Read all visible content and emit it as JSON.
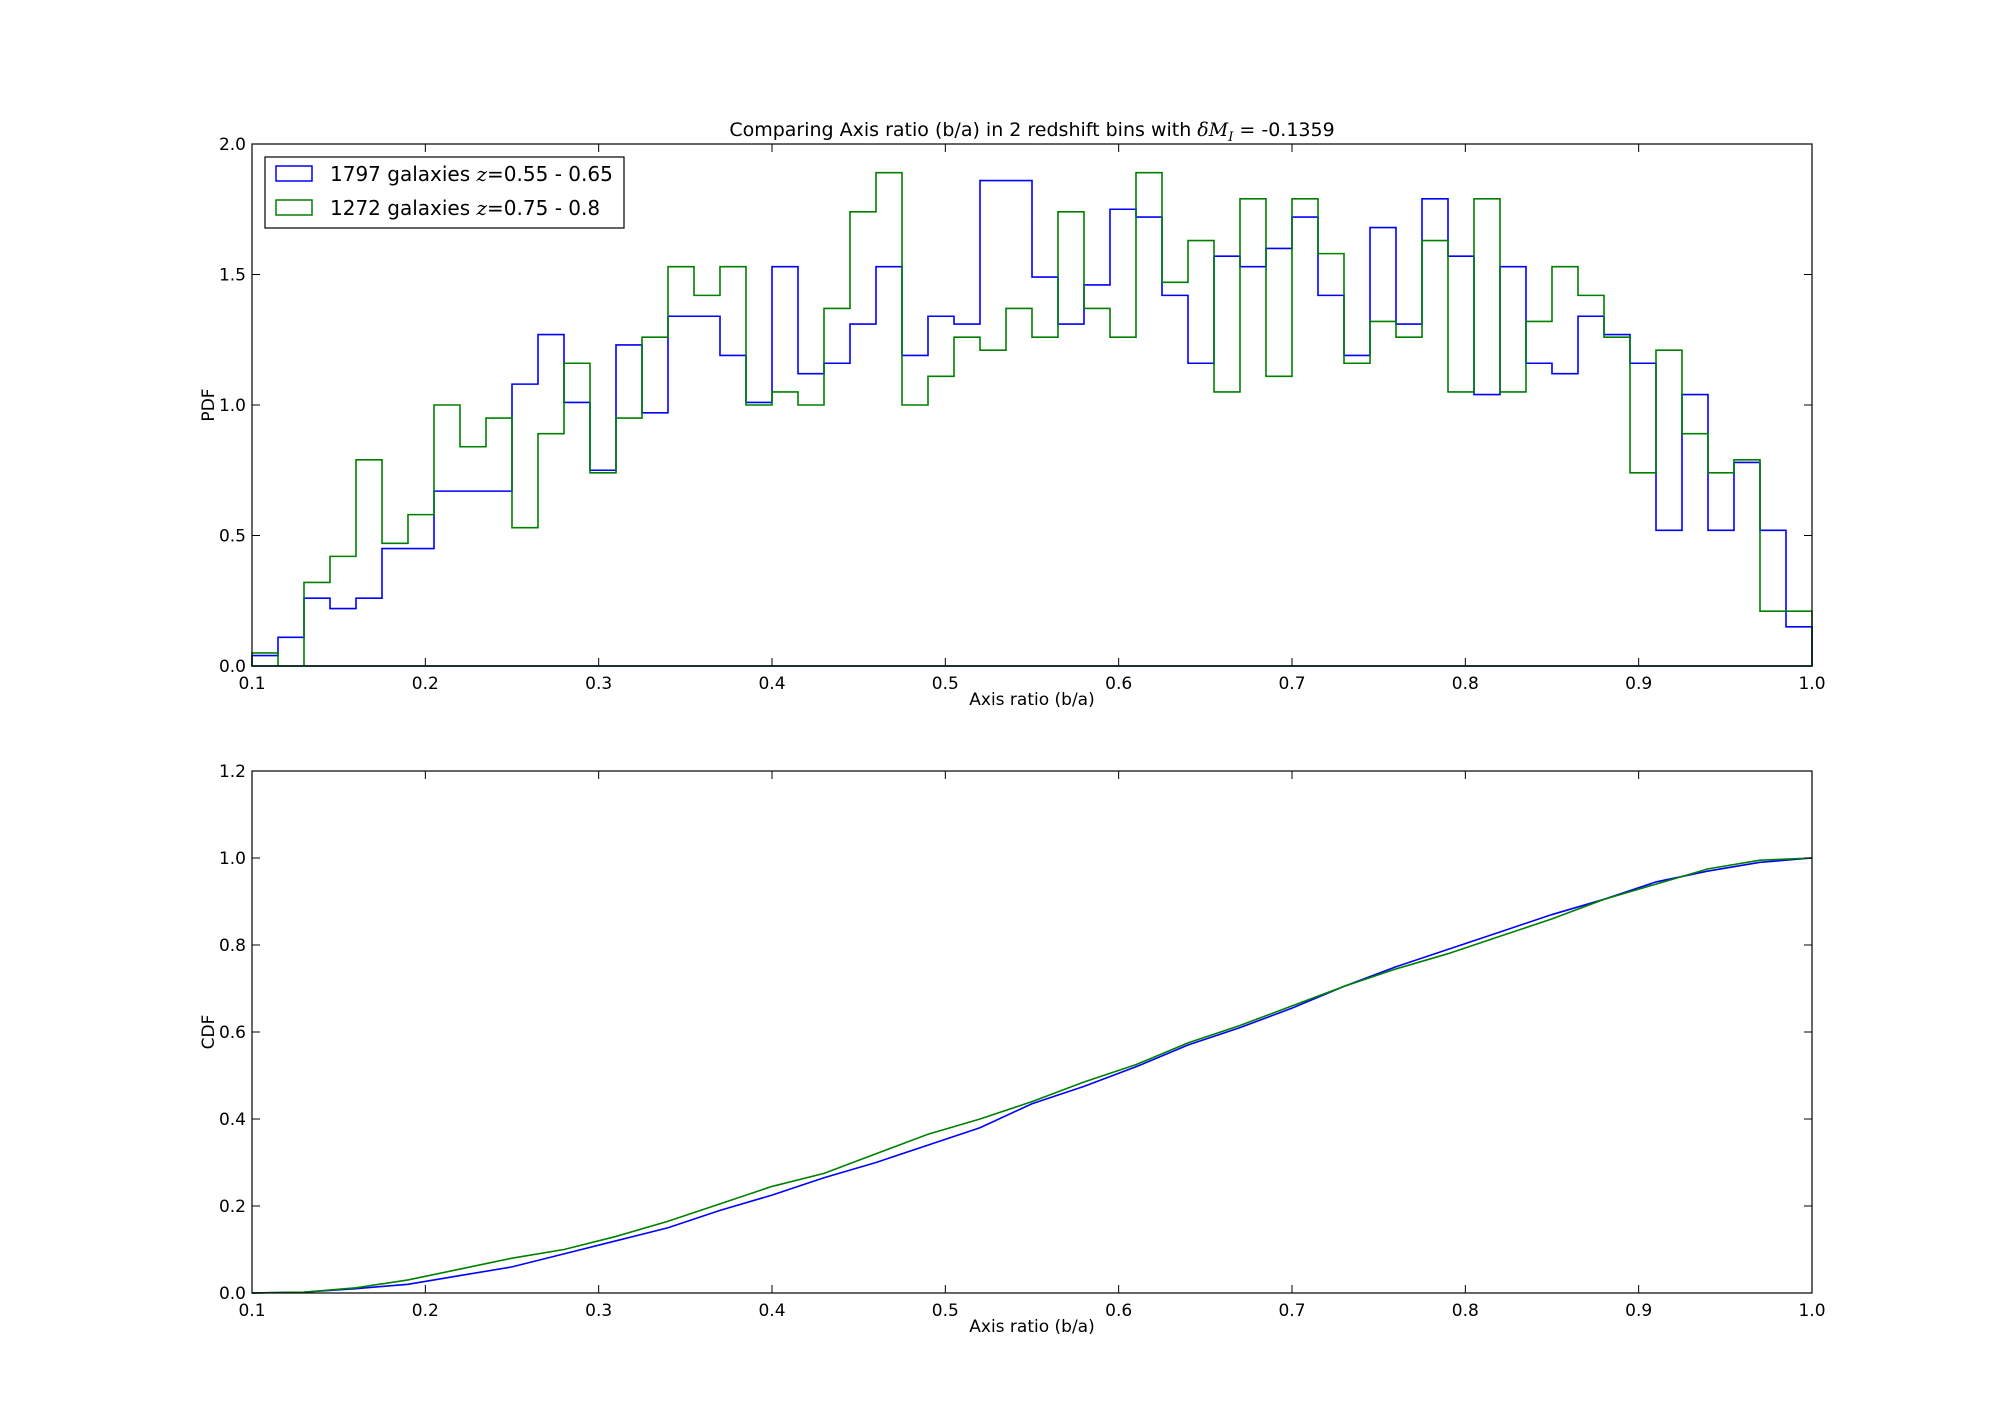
{
  "chart_data": [
    {
      "type": "histogram-step",
      "title_prefix": "Comparing Axis ratio (b/a) in 2 redshift bins with ",
      "title_math": "δM",
      "title_math_sub": "I",
      "title_suffix": " = -0.1359",
      "xlabel": "Axis ratio (b/a)",
      "ylabel": "PDF",
      "xlim": [
        0.1,
        1.0
      ],
      "ylim": [
        0.0,
        2.0
      ],
      "xticks": [
        "0.1",
        "0.2",
        "0.3",
        "0.4",
        "0.5",
        "0.6",
        "0.7",
        "0.8",
        "0.9",
        "1.0"
      ],
      "yticks": [
        "0.0",
        "0.5",
        "1.0",
        "1.5",
        "2.0"
      ],
      "legend_position": "upper-left",
      "bin_edges": [
        0.1,
        0.115,
        0.13,
        0.145,
        0.16,
        0.175,
        0.19,
        0.205,
        0.22,
        0.235,
        0.25,
        0.265,
        0.28,
        0.295,
        0.31,
        0.325,
        0.34,
        0.355,
        0.37,
        0.385,
        0.4,
        0.415,
        0.43,
        0.445,
        0.46,
        0.475,
        0.49,
        0.505,
        0.52,
        0.535,
        0.55,
        0.565,
        0.58,
        0.595,
        0.61,
        0.625,
        0.64,
        0.655,
        0.67,
        0.685,
        0.7,
        0.715,
        0.73,
        0.745,
        0.76,
        0.775,
        0.79,
        0.805,
        0.82,
        0.835,
        0.85,
        0.865,
        0.88,
        0.895,
        0.91,
        0.925,
        0.94,
        0.955,
        0.97,
        0.985,
        1.0
      ],
      "series": [
        {
          "name_prefix": "1797 galaxies ",
          "name_math": "z",
          "name_suffix": "=0.55 - 0.65",
          "color": "#0000ff",
          "values": [
            0.04,
            0.11,
            0.26,
            0.22,
            0.26,
            0.45,
            0.45,
            0.67,
            0.67,
            0.67,
            1.08,
            1.27,
            1.01,
            0.75,
            1.23,
            0.97,
            1.34,
            1.34,
            1.19,
            1.01,
            1.53,
            1.12,
            1.16,
            1.31,
            1.53,
            1.19,
            1.34,
            1.31,
            1.86,
            1.86,
            1.49,
            1.31,
            1.46,
            1.75,
            1.72,
            1.42,
            1.16,
            1.57,
            1.53,
            1.6,
            1.72,
            1.42,
            1.19,
            1.68,
            1.31,
            1.79,
            1.57,
            1.04,
            1.53,
            1.16,
            1.12,
            1.34,
            1.27,
            1.16,
            0.52,
            1.04,
            0.52,
            0.78,
            0.52,
            0.15
          ]
        },
        {
          "name_prefix": "1272 galaxies ",
          "name_math": "z",
          "name_suffix": "=0.75 - 0.8",
          "color": "#008000",
          "values": [
            0.05,
            0.0,
            0.32,
            0.42,
            0.79,
            0.47,
            0.58,
            1.0,
            0.84,
            0.95,
            0.53,
            0.89,
            1.16,
            0.74,
            0.95,
            1.26,
            1.53,
            1.42,
            1.53,
            1.0,
            1.05,
            1.0,
            1.37,
            1.74,
            1.89,
            1.0,
            1.11,
            1.26,
            1.21,
            1.37,
            1.26,
            1.74,
            1.37,
            1.26,
            1.89,
            1.47,
            1.63,
            1.05,
            1.79,
            1.11,
            1.79,
            1.58,
            1.16,
            1.32,
            1.26,
            1.63,
            1.05,
            1.79,
            1.05,
            1.32,
            1.53,
            1.42,
            1.26,
            0.74,
            1.21,
            0.89,
            0.74,
            0.79,
            0.21,
            0.21
          ]
        }
      ]
    },
    {
      "type": "line",
      "xlabel": "Axis ratio (b/a)",
      "ylabel": "CDF",
      "xlim": [
        0.1,
        1.0
      ],
      "ylim": [
        0.0,
        1.2
      ],
      "xticks": [
        "0.1",
        "0.2",
        "0.3",
        "0.4",
        "0.5",
        "0.6",
        "0.7",
        "0.8",
        "0.9",
        "1.0"
      ],
      "yticks": [
        "0.0",
        "0.2",
        "0.4",
        "0.6",
        "0.8",
        "1.0",
        "1.2"
      ],
      "x": [
        0.1,
        0.13,
        0.16,
        0.19,
        0.22,
        0.25,
        0.28,
        0.31,
        0.34,
        0.37,
        0.4,
        0.43,
        0.46,
        0.49,
        0.52,
        0.55,
        0.58,
        0.61,
        0.64,
        0.67,
        0.7,
        0.73,
        0.76,
        0.79,
        0.82,
        0.85,
        0.88,
        0.91,
        0.94,
        0.97,
        1.0
      ],
      "series": [
        {
          "color": "#0000ff",
          "values": [
            0.0,
            0.002,
            0.01,
            0.02,
            0.04,
            0.06,
            0.09,
            0.12,
            0.15,
            0.19,
            0.225,
            0.265,
            0.3,
            0.34,
            0.38,
            0.435,
            0.475,
            0.52,
            0.57,
            0.61,
            0.655,
            0.705,
            0.75,
            0.79,
            0.83,
            0.87,
            0.905,
            0.945,
            0.97,
            0.99,
            1.0
          ]
        },
        {
          "color": "#008000",
          "values": [
            0.0,
            0.002,
            0.012,
            0.03,
            0.055,
            0.08,
            0.1,
            0.13,
            0.165,
            0.205,
            0.245,
            0.275,
            0.32,
            0.365,
            0.4,
            0.44,
            0.485,
            0.525,
            0.575,
            0.615,
            0.66,
            0.705,
            0.745,
            0.78,
            0.82,
            0.86,
            0.905,
            0.94,
            0.975,
            0.995,
            1.0
          ]
        }
      ]
    }
  ]
}
